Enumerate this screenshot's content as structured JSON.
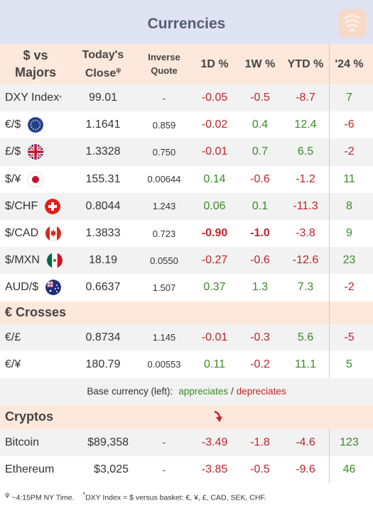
{
  "title": "Currencies",
  "header": {
    "name": [
      "$ vs",
      "Majors"
    ],
    "close": [
      "Today's",
      "Close"
    ],
    "close_symbol": "ψ",
    "inverse": [
      "Inverse",
      "Quote"
    ],
    "d1": "1D %",
    "w1": "1W %",
    "ytd": "YTD %",
    "y24": "'24 %"
  },
  "majors": [
    {
      "name": "DXY Index",
      "sup": "*",
      "flag": "",
      "close": "99.01",
      "inverse": "-",
      "d1": "-0.05",
      "w1": "-0.5",
      "ytd": "-8.7",
      "y24": "7",
      "d1c": "red",
      "w1c": "red",
      "ytdc": "red",
      "y24c": "green"
    },
    {
      "name": "€/$",
      "sup": "",
      "flag": "eu-flag-icon",
      "close": "1.1641",
      "inverse": "0.859",
      "d1": "-0.02",
      "w1": "0.4",
      "ytd": "12.4",
      "y24": "-6",
      "d1c": "red",
      "w1c": "green",
      "ytdc": "green",
      "y24c": "red"
    },
    {
      "name": "£/$",
      "sup": "",
      "flag": "uk-flag-icon",
      "close": "1.3328",
      "inverse": "0.750",
      "d1": "-0.01",
      "w1": "0.7",
      "ytd": "6.5",
      "y24": "-2",
      "d1c": "red",
      "w1c": "green",
      "ytdc": "green",
      "y24c": "red"
    },
    {
      "name": "$/¥",
      "sup": "",
      "flag": "japan-flag-icon",
      "close": "155.31",
      "inverse": "0.00644",
      "d1": "0.14",
      "w1": "-0.6",
      "ytd": "-1.2",
      "y24": "11",
      "d1c": "green",
      "w1c": "red",
      "ytdc": "red",
      "y24c": "green"
    },
    {
      "name": "$/CHF",
      "sup": "",
      "flag": "swiss-flag-icon",
      "close": "0.8044",
      "inverse": "1.243",
      "d1": "0.06",
      "w1": "0.1",
      "ytd": "-11.3",
      "y24": "8",
      "d1c": "green",
      "w1c": "green",
      "ytdc": "red",
      "y24c": "green"
    },
    {
      "name": "$/CAD",
      "sup": "",
      "flag": "canada-flag-icon",
      "close": "1.3833",
      "inverse": "0.723",
      "d1": "-0.90",
      "w1": "-1.0",
      "ytd": "-3.8",
      "y24": "9",
      "d1c": "red bold",
      "w1c": "red bold",
      "ytdc": "red",
      "y24c": "green"
    },
    {
      "name": "$/MXN",
      "sup": "",
      "flag": "mexico-flag-icon",
      "close": "18.19",
      "inverse": "0.0550",
      "d1": "-0.27",
      "w1": "-0.6",
      "ytd": "-12.6",
      "y24": "23",
      "d1c": "red",
      "w1c": "red",
      "ytdc": "red",
      "y24c": "green"
    },
    {
      "name": "AUD/$",
      "sup": "",
      "flag": "australia-flag-icon",
      "close": "0.6637",
      "inverse": "1.507",
      "d1": "0.37",
      "w1": "1.3",
      "ytd": "7.3",
      "y24": "-2",
      "d1c": "green",
      "w1c": "green",
      "ytdc": "green",
      "y24c": "red"
    }
  ],
  "crosses_title": "€ Crosses",
  "crosses": [
    {
      "name": "€/£",
      "close": "0.8734",
      "inverse": "1.145",
      "d1": "-0.01",
      "w1": "-0.3",
      "ytd": "5.6",
      "y24": "-5",
      "d1c": "red",
      "w1c": "red",
      "ytdc": "green",
      "y24c": "red"
    },
    {
      "name": "€/¥",
      "close": "180.79",
      "inverse": "0.00553",
      "d1": "0.11",
      "w1": "-0.2",
      "ytd": "11.1",
      "y24": "5",
      "d1c": "green",
      "w1c": "red",
      "ytdc": "green",
      "y24c": "green"
    }
  ],
  "legend": {
    "prefix": "Base currency (left):",
    "appreciates": "appreciates",
    "slash": "/",
    "depreciates": "depreciates"
  },
  "cryptos_title": "Cryptos",
  "crypto_arrow_icon": "down-arrow-icon",
  "cryptos": [
    {
      "name": "Bitcoin",
      "close": "$89,358",
      "inverse": "-",
      "d1": "-3.49",
      "w1": "-1.8",
      "ytd": "-4.6",
      "y24": "123",
      "d1c": "red",
      "w1c": "red",
      "ytdc": "red",
      "y24c": "green"
    },
    {
      "name": "Ethereum",
      "close": "$3,025",
      "inverse": "-",
      "d1": "-3.85",
      "w1": "-0.5",
      "ytd": "-9.6",
      "y24": "46",
      "d1c": "red",
      "w1c": "red",
      "ytdc": "red",
      "y24c": "green"
    }
  ],
  "footer": {
    "note1_sym": "ψ",
    "note1": "~4:15PM NY Time.",
    "note2_sym": "*",
    "note2": "DXY Index = $ versus basket: €, ¥, £, CAD, SEK, CHF."
  },
  "colors": {
    "green": "#3a8a28",
    "red": "#c0242a",
    "header_bg": "#fde8dc",
    "title_bg": "#dfe3f2"
  }
}
